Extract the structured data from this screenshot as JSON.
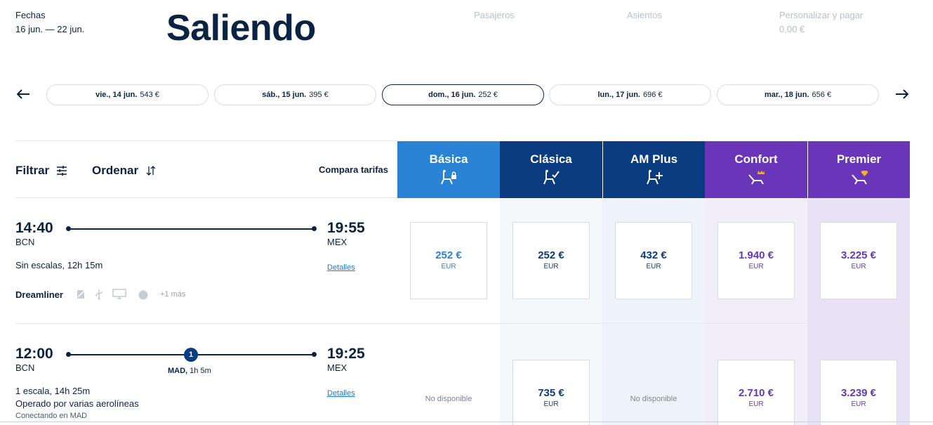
{
  "header": {
    "dates_label": "Fechas",
    "dates_value": "16 jun. — 22 jun.",
    "title": "Saliendo",
    "steps": [
      {
        "label": "Pasajeros",
        "value": ""
      },
      {
        "label": "Asientos",
        "value": ""
      },
      {
        "label": "Personalizar y pagar",
        "value": "0,00 €"
      }
    ]
  },
  "date_strip": {
    "dates": [
      {
        "day": "vie., 14 jun.",
        "price": "543 €",
        "selected": false
      },
      {
        "day": "sáb., 15 jun.",
        "price": "395 €",
        "selected": false
      },
      {
        "day": "dom., 16 jun.",
        "price": "252 €",
        "selected": true
      },
      {
        "day": "lun., 17 jun.",
        "price": "696 €",
        "selected": false
      },
      {
        "day": "mar., 18 jun.",
        "price": "656 €",
        "selected": false
      }
    ]
  },
  "toolbar": {
    "filter_label": "Filtrar",
    "sort_label": "Ordenar",
    "compare_label": "Compara tarifas"
  },
  "fares": [
    {
      "name": "Básica",
      "icon": "seat-lock-icon",
      "color": "#2a82d4"
    },
    {
      "name": "Clásica",
      "icon": "seat-check-icon",
      "color": "#0b3c80"
    },
    {
      "name": "AM Plus",
      "icon": "seat-plus-icon",
      "color": "#0b3c80"
    },
    {
      "name": "Confort",
      "icon": "recline-crown-icon",
      "color": "#6936b9"
    },
    {
      "name": "Premier",
      "icon": "recline-diamond-icon",
      "color": "#6936b9"
    }
  ],
  "flights": [
    {
      "depart_time": "14:40",
      "depart_airport": "BCN",
      "arrive_time": "19:55",
      "arrive_airport": "MEX",
      "summary": "Sin escalas, 12h 15m",
      "details_link": "Detalles",
      "aircraft": "Dreamliner",
      "amenities": [
        "wifi-icon",
        "usb-icon",
        "screen-icon",
        "meal-icon"
      ],
      "more_amenities": "+1 más",
      "prices": [
        {
          "amount": "252 €",
          "currency": "EUR"
        },
        {
          "amount": "252 €",
          "currency": "EUR"
        },
        {
          "amount": "432 €",
          "currency": "EUR"
        },
        {
          "amount": "1.940 €",
          "currency": "EUR"
        },
        {
          "amount": "3.225 €",
          "currency": "EUR"
        }
      ]
    },
    {
      "depart_time": "12:00",
      "depart_airport": "BCN",
      "arrive_time": "19:25",
      "arrive_airport": "MEX",
      "stops_count": "1",
      "stop_airport": "MAD,",
      "stop_duration": "1h 5m",
      "summary": "1 escala, 14h 25m",
      "operated_by": "Operado por varias aerolíneas",
      "connecting": "Conectando en MAD",
      "details_link": "Detalles",
      "prices": [
        {
          "unavailable": "No disponible"
        },
        {
          "amount": "735 €",
          "currency": "EUR"
        },
        {
          "unavailable": "No disponible"
        },
        {
          "amount": "2.710 €",
          "currency": "EUR"
        },
        {
          "amount": "3.239 €",
          "currency": "EUR"
        }
      ]
    }
  ],
  "colors": {
    "navy": "#0b2343",
    "basic_blue": "#2a82d4",
    "classic_blue": "#0b3c80",
    "premium_purple": "#6936b9"
  }
}
